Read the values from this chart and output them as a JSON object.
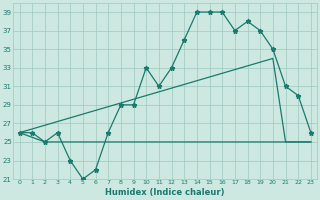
{
  "xlabel": "Humidex (Indice chaleur)",
  "x_values": [
    0,
    1,
    2,
    3,
    4,
    5,
    6,
    7,
    8,
    9,
    10,
    11,
    12,
    13,
    14,
    15,
    16,
    17,
    18,
    19,
    20,
    21,
    22,
    23
  ],
  "main_line": [
    26,
    26,
    25,
    26,
    23,
    21,
    22,
    26,
    29,
    29,
    33,
    31,
    33,
    36,
    39,
    39,
    39,
    37,
    38,
    37,
    35,
    31,
    30,
    26
  ],
  "upper_env_x": [
    0,
    3,
    20,
    21,
    23
  ],
  "upper_env_y": [
    26,
    26,
    34,
    25,
    25
  ],
  "lower_env_x": [
    0,
    3,
    4,
    20,
    23
  ],
  "lower_env_y": [
    26,
    25,
    25,
    25,
    25
  ],
  "line_color": "#1a7a6e",
  "bg_color": "#cce8e0",
  "grid_color": "#9ec8be",
  "ylim": [
    21,
    40
  ],
  "yticks": [
    21,
    23,
    25,
    27,
    29,
    31,
    33,
    35,
    37,
    39
  ],
  "xlim": [
    -0.5,
    23.5
  ]
}
